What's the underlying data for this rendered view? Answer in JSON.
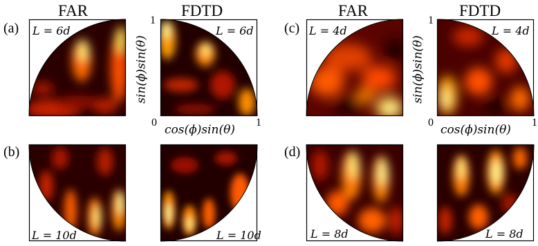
{
  "columns": {
    "far_left": "FAR",
    "fdtd_left": "FDTD",
    "far_right": "FAR",
    "fdtd_right": "FDTD"
  },
  "panel_tags": {
    "a": "(a)",
    "b": "(b)",
    "c": "(c)",
    "d": "(d)"
  },
  "axes": {
    "x_label": "cos(ϕ)sin(θ)",
    "y_label": "sin(ϕ)sin(θ)",
    "tick_0": "0",
    "tick_1": "1"
  },
  "lengths": {
    "a_far": "L = 6d",
    "a_fdtd": "L = 6d",
    "b_far": "L = 10d",
    "b_fdtd": "L = 10d",
    "c_far": "L = 4d",
    "c_fdtd": "L = 4d",
    "d_far": "L = 8d",
    "d_fdtd": "L = 8d"
  },
  "colormap": [
    "#000000",
    "#7a0000",
    "#ff3b00",
    "#ffb000",
    "#ffff9a"
  ]
}
